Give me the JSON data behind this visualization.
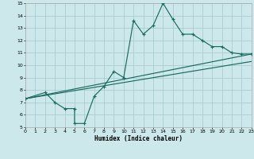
{
  "xlabel": "Humidex (Indice chaleur)",
  "background_color": "#cce8eb",
  "grid_color": "#aacdd2",
  "line_color": "#1a6b60",
  "xlim": [
    0,
    23
  ],
  "ylim": [
    5,
    15
  ],
  "xticks": [
    0,
    1,
    2,
    3,
    4,
    5,
    6,
    7,
    8,
    9,
    10,
    11,
    12,
    13,
    14,
    15,
    16,
    17,
    18,
    19,
    20,
    21,
    22,
    23
  ],
  "yticks": [
    5,
    6,
    7,
    8,
    9,
    10,
    11,
    12,
    13,
    14,
    15
  ],
  "line1_x": [
    0,
    2,
    3,
    4,
    5,
    5,
    6,
    7,
    8,
    9,
    10,
    11,
    12,
    13,
    14,
    15,
    16,
    17,
    18,
    19,
    20,
    21,
    22,
    23
  ],
  "line1_y": [
    7.3,
    7.8,
    7.0,
    6.5,
    6.5,
    5.3,
    5.3,
    7.5,
    8.3,
    9.5,
    9.0,
    13.6,
    12.5,
    13.2,
    15.0,
    13.7,
    12.5,
    12.5,
    12.0,
    11.5,
    11.5,
    11.0,
    10.9,
    10.9
  ],
  "line2_x": [
    0,
    23
  ],
  "line2_y": [
    7.3,
    10.9
  ],
  "line3_x": [
    0,
    23
  ],
  "line3_y": [
    7.3,
    10.3
  ],
  "figsize": [
    3.2,
    2.0
  ],
  "dpi": 100
}
